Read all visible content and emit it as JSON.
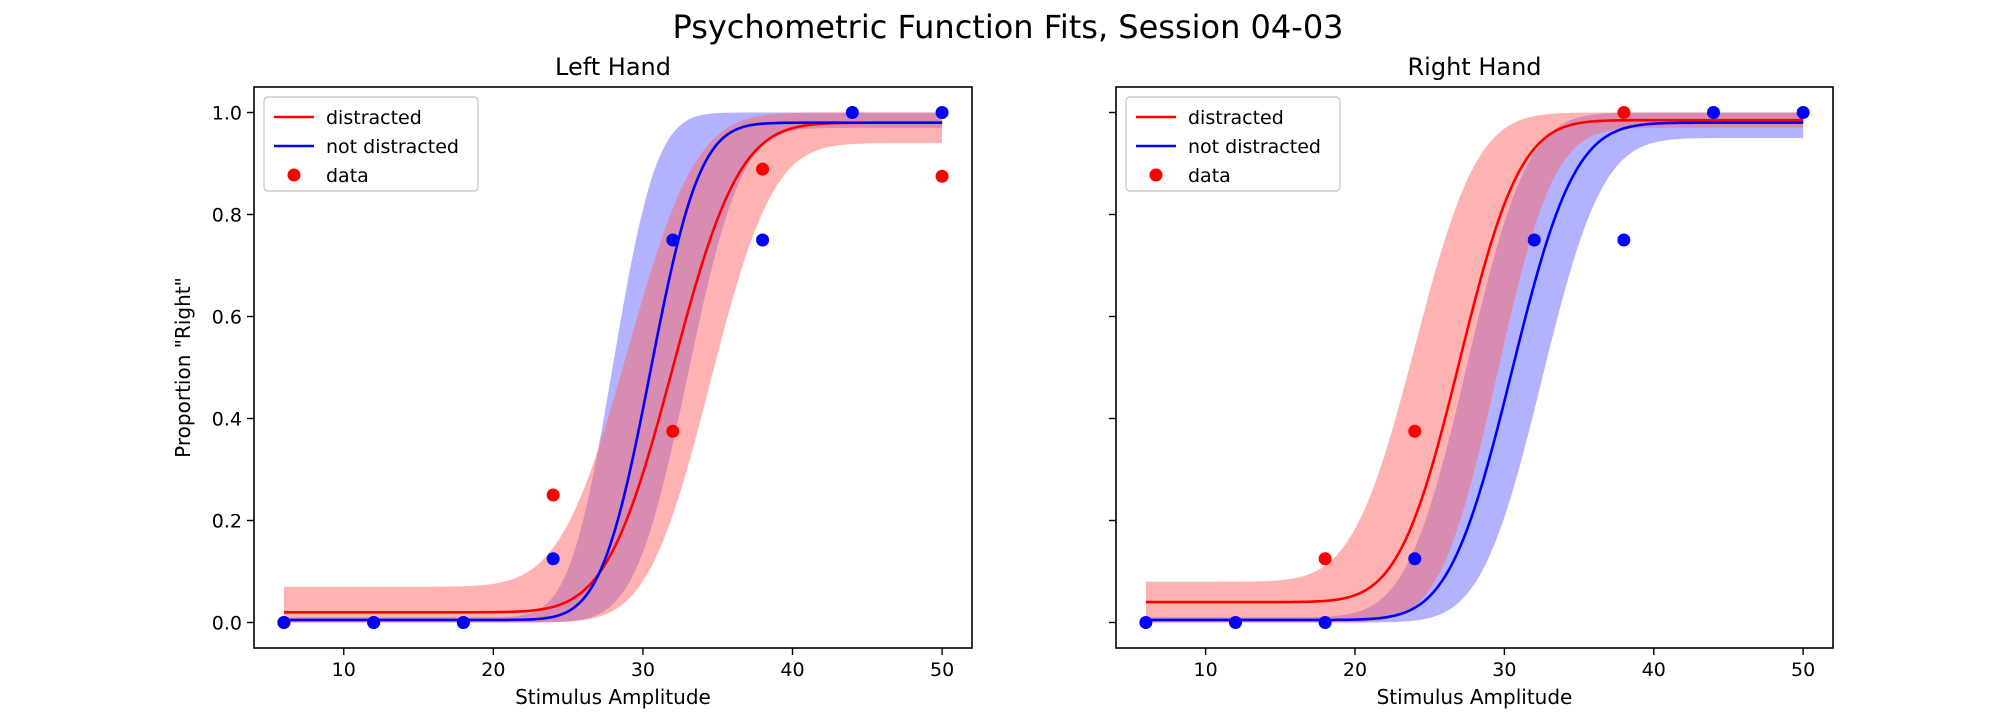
{
  "chart_data": {
    "type": "line",
    "title": "Psychometric Function Fits, Session 04-03",
    "sharey": true,
    "colors": {
      "distracted": "#ff0000",
      "not_distracted": "#0000ff",
      "distracted_band": "#ff6666",
      "not_distracted_band": "#6666ff",
      "band_opacity": 0.5
    },
    "panels": [
      {
        "title": "Left Hand",
        "xlabel": "Stimulus Amplitude",
        "ylabel": "Proportion \"Right\"",
        "xlim": [
          4,
          52
        ],
        "ylim": [
          -0.05,
          1.05
        ],
        "xticks": [
          10,
          20,
          30,
          40,
          50
        ],
        "yticks": [
          0.0,
          0.2,
          0.4,
          0.6,
          0.8,
          1.0
        ],
        "show_yticklabels": true,
        "legend": {
          "location": "upper-left",
          "entries": [
            {
              "label": "distracted",
              "kind": "line",
              "color": "#ff0000"
            },
            {
              "label": "not distracted",
              "kind": "line",
              "color": "#0000ff"
            },
            {
              "label": "data",
              "kind": "marker",
              "color": "#ff0000"
            }
          ]
        },
        "series": [
          {
            "name": "distracted",
            "color": "#ff0000",
            "fit": {
              "gamma": 0.02,
              "lambda": 0.02,
              "mu": 32.0,
              "sigma": 3.5
            },
            "band_lower": {
              "gamma": 0.0,
              "lambda": 0.06,
              "mu": 34.5,
              "sigma": 3.3
            },
            "band_upper": {
              "gamma": 0.07,
              "lambda": 0.0,
              "mu": 29.0,
              "sigma": 3.6
            },
            "points": {
              "x": [
                6,
                12,
                18,
                24,
                32,
                38,
                50
              ],
              "y": [
                0.0,
                0.0,
                0.0,
                0.25,
                0.375,
                0.889,
                0.875
              ]
            }
          },
          {
            "name": "not distracted",
            "color": "#0000ff",
            "fit": {
              "gamma": 0.005,
              "lambda": 0.02,
              "mu": 30.5,
              "sigma": 2.6
            },
            "band_lower": {
              "gamma": 0.0,
              "lambda": 0.03,
              "mu": 33.0,
              "sigma": 2.8
            },
            "band_upper": {
              "gamma": 0.01,
              "lambda": 0.0,
              "mu": 28.0,
              "sigma": 2.3
            },
            "points": {
              "x": [
                6,
                12,
                18,
                24,
                32,
                38,
                44,
                50
              ],
              "y": [
                0.0,
                0.0,
                0.0,
                0.125,
                0.75,
                0.75,
                1.0,
                1.0
              ]
            }
          }
        ]
      },
      {
        "title": "Right Hand",
        "xlabel": "Stimulus Amplitude",
        "ylabel": "",
        "xlim": [
          4,
          52
        ],
        "ylim": [
          -0.05,
          1.05
        ],
        "xticks": [
          10,
          20,
          30,
          40,
          50
        ],
        "yticks": [
          0.0,
          0.2,
          0.4,
          0.6,
          0.8,
          1.0
        ],
        "show_yticklabels": false,
        "legend": {
          "location": "upper-left",
          "entries": [
            {
              "label": "distracted",
              "kind": "line",
              "color": "#ff0000"
            },
            {
              "label": "not distracted",
              "kind": "line",
              "color": "#0000ff"
            },
            {
              "label": "data",
              "kind": "marker",
              "color": "#ff0000"
            }
          ]
        },
        "series": [
          {
            "name": "distracted",
            "color": "#ff0000",
            "fit": {
              "gamma": 0.04,
              "lambda": 0.015,
              "mu": 27.0,
              "sigma": 3.2
            },
            "band_lower": {
              "gamma": 0.0,
              "lambda": 0.03,
              "mu": 29.5,
              "sigma": 3.0
            },
            "band_upper": {
              "gamma": 0.08,
              "lambda": 0.0,
              "mu": 24.0,
              "sigma": 3.3
            },
            "points": {
              "x": [
                18,
                24,
                38
              ],
              "y": [
                0.125,
                0.375,
                1.0
              ]
            }
          },
          {
            "name": "not distracted",
            "color": "#0000ff",
            "fit": {
              "gamma": 0.005,
              "lambda": 0.02,
              "mu": 30.5,
              "sigma": 3.3
            },
            "band_lower": {
              "gamma": 0.0,
              "lambda": 0.05,
              "mu": 32.5,
              "sigma": 3.2
            },
            "band_upper": {
              "gamma": 0.01,
              "lambda": 0.0,
              "mu": 27.5,
              "sigma": 3.2
            },
            "points": {
              "x": [
                6,
                12,
                18,
                24,
                32,
                38,
                44,
                50
              ],
              "y": [
                0.0,
                0.0,
                0.0,
                0.125,
                0.75,
                0.75,
                1.0,
                1.0
              ]
            }
          }
        ]
      }
    ]
  }
}
